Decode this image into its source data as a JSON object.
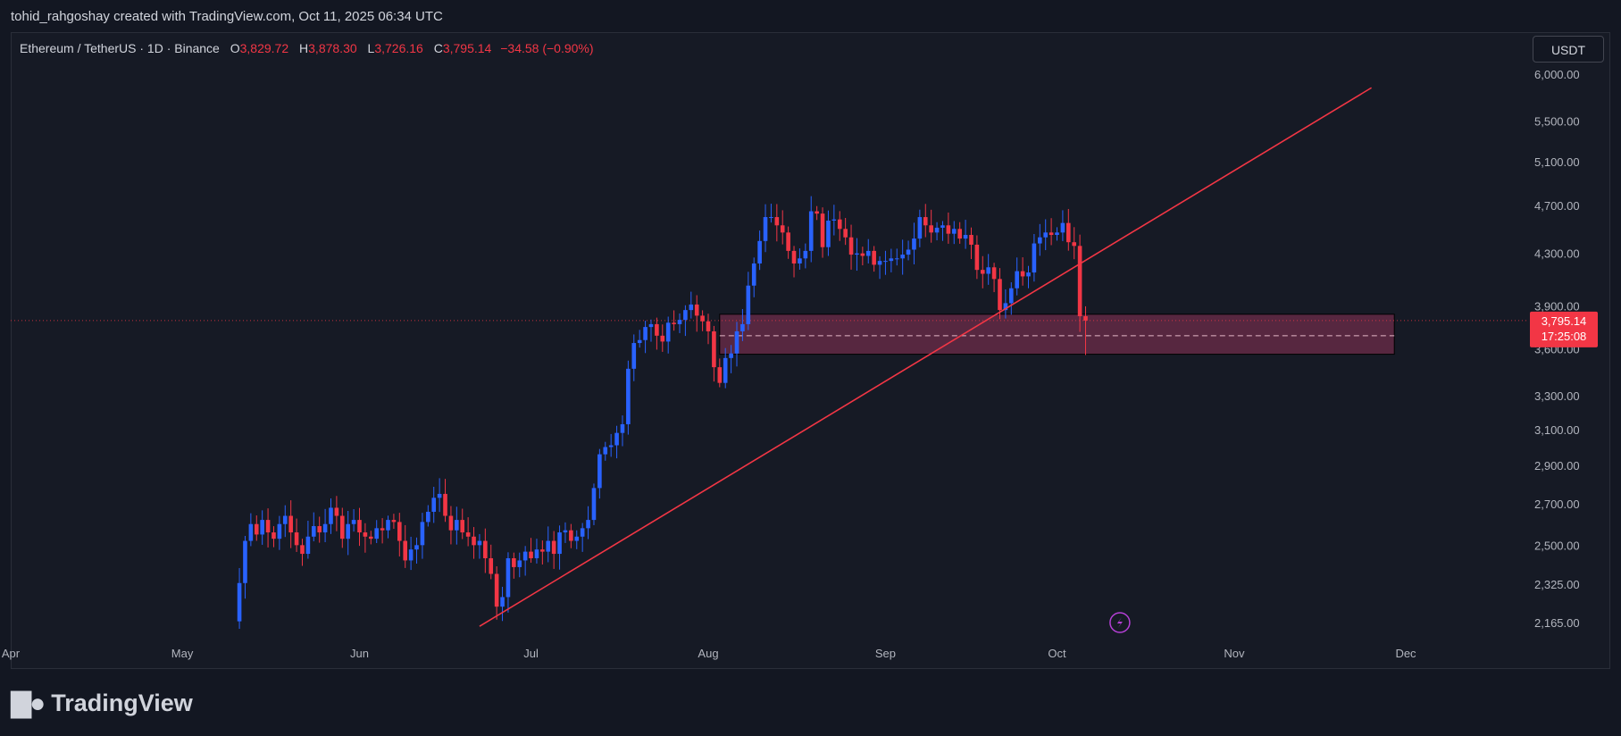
{
  "header": {
    "attribution": "tohid_rahgoshay created with TradingView.com, Oct 11, 2025 06:34 UTC"
  },
  "legend": {
    "symbol": "Ethereum / TetherUS · 1D · Binance",
    "open_label": "O",
    "open": "3,829.72",
    "high_label": "H",
    "high": "3,878.30",
    "low_label": "L",
    "low": "3,726.16",
    "close_label": "C",
    "close": "3,795.14",
    "change": "−34.58 (−0.90%)"
  },
  "currency_button": "USDT",
  "brand": {
    "name": "TradingView"
  },
  "colors": {
    "up": "#2962ff",
    "down": "#f23645",
    "background": "#161a25",
    "zone": "#6e2c4a"
  },
  "chart_data": {
    "type": "candlestick",
    "y_scale": "log",
    "y_ticks": [
      {
        "v": 6000,
        "label": "6,000.00"
      },
      {
        "v": 5500,
        "label": "5,500.00"
      },
      {
        "v": 5100,
        "label": "5,100.00"
      },
      {
        "v": 4700,
        "label": "4,700.00"
      },
      {
        "v": 4300,
        "label": "4,300.00"
      },
      {
        "v": 3900,
        "label": "3,900.00"
      },
      {
        "v": 3600,
        "label": "3,600.00"
      },
      {
        "v": 3300,
        "label": "3,300.00"
      },
      {
        "v": 3100,
        "label": "3,100.00"
      },
      {
        "v": 2900,
        "label": "2,900.00"
      },
      {
        "v": 2700,
        "label": "2,700.00"
      },
      {
        "v": 2500,
        "label": "2,500.00"
      },
      {
        "v": 2325,
        "label": "2,325.00"
      },
      {
        "v": 2165,
        "label": "2,165.00"
      }
    ],
    "x_ticks": [
      "Apr",
      "May",
      "Jun",
      "Jul",
      "Aug",
      "Sep",
      "Oct",
      "Nov",
      "Dec"
    ],
    "x_tick_dates": [
      "2025-04-01",
      "2025-05-01",
      "2025-06-01",
      "2025-07-01",
      "2025-08-01",
      "2025-09-01",
      "2025-10-01",
      "2025-11-01",
      "2025-12-01"
    ],
    "start_date": "2025-05-10",
    "closes": [
      2170,
      2330,
      2520,
      2600,
      2550,
      2620,
      2560,
      2530,
      2600,
      2640,
      2560,
      2500,
      2460,
      2540,
      2590,
      2560,
      2600,
      2680,
      2640,
      2530,
      2600,
      2620,
      2560,
      2540,
      2530,
      2580,
      2570,
      2620,
      2610,
      2520,
      2430,
      2480,
      2500,
      2610,
      2660,
      2730,
      2750,
      2640,
      2570,
      2620,
      2560,
      2540,
      2500,
      2520,
      2440,
      2370,
      2230,
      2270,
      2440,
      2400,
      2430,
      2470,
      2440,
      2480,
      2470,
      2520,
      2460,
      2560,
      2570,
      2520,
      2540,
      2580,
      2620,
      2780,
      2960,
      3000,
      3010,
      3080,
      3130,
      3470,
      3640,
      3660,
      3750,
      3770,
      3690,
      3650,
      3780,
      3770,
      3800,
      3870,
      3910,
      3830,
      3790,
      3720,
      3480,
      3380,
      3540,
      3570,
      3720,
      3770,
      4050,
      4220,
      4400,
      4600,
      4600,
      4530,
      4470,
      4320,
      4220,
      4260,
      4320,
      4650,
      4630,
      4350,
      4570,
      4580,
      4500,
      4430,
      4290,
      4300,
      4280,
      4320,
      4210,
      4240,
      4240,
      4260,
      4260,
      4290,
      4330,
      4420,
      4600,
      4530,
      4470,
      4510,
      4530,
      4460,
      4500,
      4420,
      4450,
      4370,
      4170,
      4140,
      4190,
      4100,
      3870,
      3920,
      4030,
      4160,
      4120,
      4150,
      4380,
      4430,
      4470,
      4450,
      4470,
      4550,
      4390,
      4360,
      3826,
      3795
    ],
    "series_labels": {
      "last_price": "3,795.14",
      "countdown": "17:25:08"
    },
    "support_zone": {
      "from_date": "2025-08-03",
      "to_date": "2025-11-29",
      "top": 3840,
      "bottom": 3565,
      "mid": 3690
    },
    "trendline": {
      "x1": "2025-06-22",
      "y1": 2150,
      "x2": "2025-11-25",
      "y2": 5850
    },
    "last_price_line": 3795
  }
}
